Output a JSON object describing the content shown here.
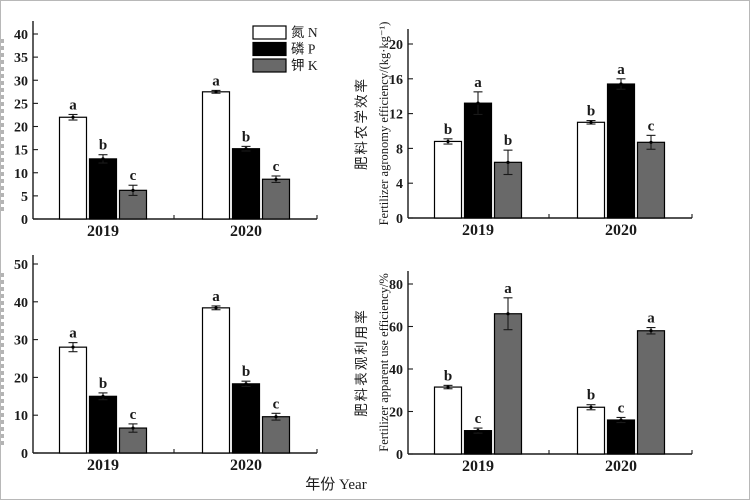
{
  "figure": {
    "x_axis_label": "年份 Year",
    "legend": {
      "items": [
        {
          "label": "氮 N",
          "color": "#ffffff"
        },
        {
          "label": "磷 P",
          "color": "#000000"
        },
        {
          "label": "钾 K",
          "color": "#696969"
        }
      ]
    }
  },
  "chart_data": [
    {
      "type": "bar",
      "panel": "top-left",
      "ylabel_cn": "",
      "ylabel_en": "",
      "ylim": [
        0,
        40
      ],
      "ytick_step": 5,
      "categories": [
        "2019",
        "2020"
      ],
      "series": [
        {
          "name": "氮 N",
          "color": "#ffffff",
          "values": [
            22,
            27.5
          ],
          "errors": [
            0.6,
            0.3
          ],
          "sig_letters": [
            "a",
            "a"
          ]
        },
        {
          "name": "磷 P",
          "color": "#000000",
          "values": [
            13,
            15.2
          ],
          "errors": [
            0.9,
            0.5
          ],
          "sig_letters": [
            "b",
            "b"
          ]
        },
        {
          "name": "钾 K",
          "color": "#696969",
          "values": [
            6.2,
            8.6
          ],
          "errors": [
            1.1,
            0.7
          ],
          "sig_letters": [
            "c",
            "c"
          ]
        }
      ]
    },
    {
      "type": "bar",
      "panel": "top-right",
      "ylabel_cn": "肥料农学效率",
      "ylabel_en": "Fertilizer agronomy efficiency/(kg·kg⁻¹)",
      "ylim": [
        0,
        20
      ],
      "ytick_step": 4,
      "categories": [
        "2019",
        "2020"
      ],
      "series": [
        {
          "name": "氮 N",
          "color": "#ffffff",
          "values": [
            8.8,
            11.0
          ],
          "errors": [
            0.3,
            0.2
          ],
          "sig_letters": [
            "b",
            "b"
          ]
        },
        {
          "name": "磷 P",
          "color": "#000000",
          "values": [
            13.2,
            15.4
          ],
          "errors": [
            1.3,
            0.6
          ],
          "sig_letters": [
            "a",
            "a"
          ]
        },
        {
          "name": "钾 K",
          "color": "#696969",
          "values": [
            6.4,
            8.7
          ],
          "errors": [
            1.4,
            0.8
          ],
          "sig_letters": [
            "b",
            "c"
          ]
        }
      ]
    },
    {
      "type": "bar",
      "panel": "bottom-left",
      "ylabel_cn": "",
      "ylabel_en": "",
      "ylim": [
        0,
        50
      ],
      "ytick_step": 10,
      "categories": [
        "2019",
        "2020"
      ],
      "series": [
        {
          "name": "氮 N",
          "color": "#ffffff",
          "values": [
            28,
            38.4
          ],
          "errors": [
            1.2,
            0.5
          ],
          "sig_letters": [
            "a",
            "a"
          ]
        },
        {
          "name": "磷 P",
          "color": "#000000",
          "values": [
            15,
            18.3
          ],
          "errors": [
            0.9,
            0.7
          ],
          "sig_letters": [
            "b",
            "b"
          ]
        },
        {
          "name": "钾 K",
          "color": "#696969",
          "values": [
            6.6,
            9.6
          ],
          "errors": [
            1.1,
            0.9
          ],
          "sig_letters": [
            "c",
            "c"
          ]
        }
      ]
    },
    {
      "type": "bar",
      "panel": "bottom-right",
      "ylabel_cn": "肥料表观利用率",
      "ylabel_en": "Fertilizer apparent use efficiency/%",
      "ylim": [
        0,
        80
      ],
      "ytick_step": 20,
      "categories": [
        "2019",
        "2020"
      ],
      "series": [
        {
          "name": "氮 N",
          "color": "#ffffff",
          "values": [
            31.5,
            22
          ],
          "errors": [
            0.8,
            1.2
          ],
          "sig_letters": [
            "b",
            "b"
          ]
        },
        {
          "name": "磷 P",
          "color": "#000000",
          "values": [
            11,
            16
          ],
          "errors": [
            1.2,
            1.2
          ],
          "sig_letters": [
            "c",
            "c"
          ]
        },
        {
          "name": "钾 K",
          "color": "#696969",
          "values": [
            66,
            58
          ],
          "errors": [
            7.5,
            1.5
          ],
          "sig_letters": [
            "a",
            "a"
          ]
        }
      ]
    }
  ]
}
